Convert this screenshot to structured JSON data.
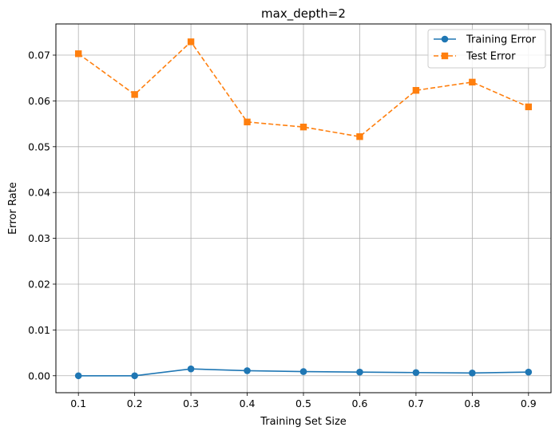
{
  "chart_data": {
    "type": "line",
    "title": "max_depth=2",
    "xlabel": "Training Set Size",
    "ylabel": "Error Rate",
    "x": [
      0.1,
      0.2,
      0.3,
      0.4,
      0.5,
      0.6,
      0.7,
      0.8,
      0.9
    ],
    "xlim": [
      0.06,
      0.94
    ],
    "ylim": [
      -0.0037,
      0.0768
    ],
    "xticks": [
      "0.1",
      "0.2",
      "0.3",
      "0.4",
      "0.5",
      "0.6",
      "0.7",
      "0.8",
      "0.9"
    ],
    "yticks": [
      "0.00",
      "0.01",
      "0.02",
      "0.03",
      "0.04",
      "0.05",
      "0.06",
      "0.07"
    ],
    "grid": true,
    "legend_position": "top-right",
    "series": [
      {
        "name": "Training Error",
        "color": "#1f77b4",
        "marker": "circle",
        "linestyle": "solid",
        "values": [
          0.0,
          0.0,
          0.0015,
          0.0011,
          0.0009,
          0.0008,
          0.0007,
          0.0006,
          0.0008
        ]
      },
      {
        "name": "Test Error",
        "color": "#ff7f0e",
        "marker": "square",
        "linestyle": "dashed",
        "values": [
          0.0703,
          0.0614,
          0.0729,
          0.0554,
          0.0543,
          0.0522,
          0.0623,
          0.0641,
          0.0587
        ]
      }
    ]
  }
}
